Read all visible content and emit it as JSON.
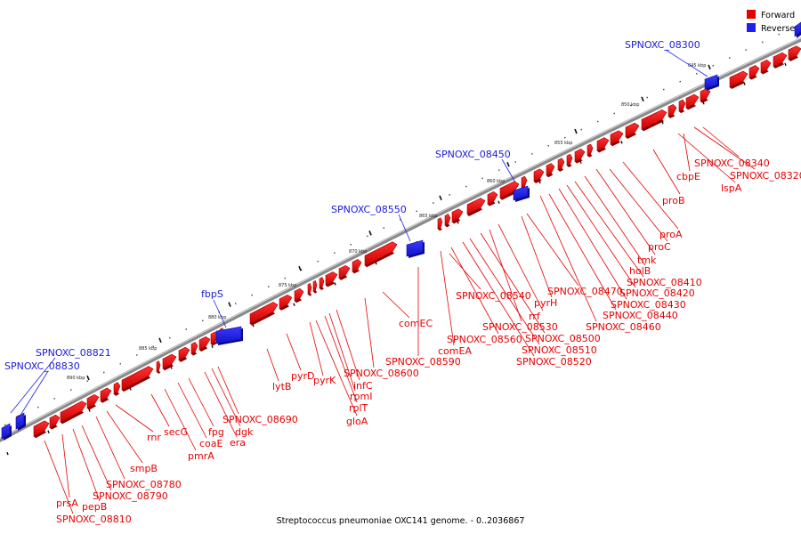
{
  "caption": "Streptococcus pneumoniae OXC141 genome. - 0..2036867",
  "legend": [
    {
      "label": "Forward",
      "color": "#e60000"
    },
    {
      "label": "Reverse",
      "color": "#1f1ff0"
    }
  ],
  "colors": {
    "forward": "#e60000",
    "forward_dark": "#9e0000",
    "reverse": "#1f1ff0",
    "reverse_dark": "#0c0c9a",
    "backbone": "#8a8a8a"
  },
  "ticks": [
    {
      "label": "845 kbp"
    },
    {
      "label": "850 kbp"
    },
    {
      "label": "855 kbp"
    },
    {
      "label": "860 kbp"
    },
    {
      "label": "865 kbp"
    },
    {
      "label": "870 kbp"
    },
    {
      "label": "875 kbp"
    },
    {
      "label": "880 kbp"
    },
    {
      "label": "885 kbp"
    },
    {
      "label": "890 kbp"
    }
  ],
  "forward_labels": [
    "SPNOXC_08340",
    "SPNOXC_08320",
    "cbpE",
    "lspA",
    "proB",
    "proA",
    "proC",
    "tmk",
    "holB",
    "SPNOXC_08410",
    "SPNOXC_08420",
    "SPNOXC_08430",
    "SPNOXC_08440",
    "SPNOXC_08460",
    "SPNOXC_08470",
    "pyrH",
    "SPNOXC_08540",
    "rrf",
    "SPNOXC_08530",
    "SPNOXC_08500",
    "SPNOXC_08510",
    "SPNOXC_08520",
    "SPNOXC_08560",
    "comEA",
    "comEC",
    "SPNOXC_08590",
    "SPNOXC_08600",
    "infC",
    "rpmI",
    "rplT",
    "gloA",
    "pyrK",
    "pyrD",
    "lytB",
    "SPNOXC_08690",
    "dgk",
    "era",
    "fpg",
    "coaE",
    "pmrA",
    "secG",
    "rnr",
    "smpB",
    "SPNOXC_08780",
    "SPNOXC_08790",
    "pepB",
    "prsA",
    "SPNOXC_08810"
  ],
  "reverse_labels": [
    "SPNOXC_08300",
    "SPNOXC_08450",
    "SPNOXC_08550",
    "fbpS",
    "SPNOXC_08821",
    "SPNOXC_08830"
  ]
}
